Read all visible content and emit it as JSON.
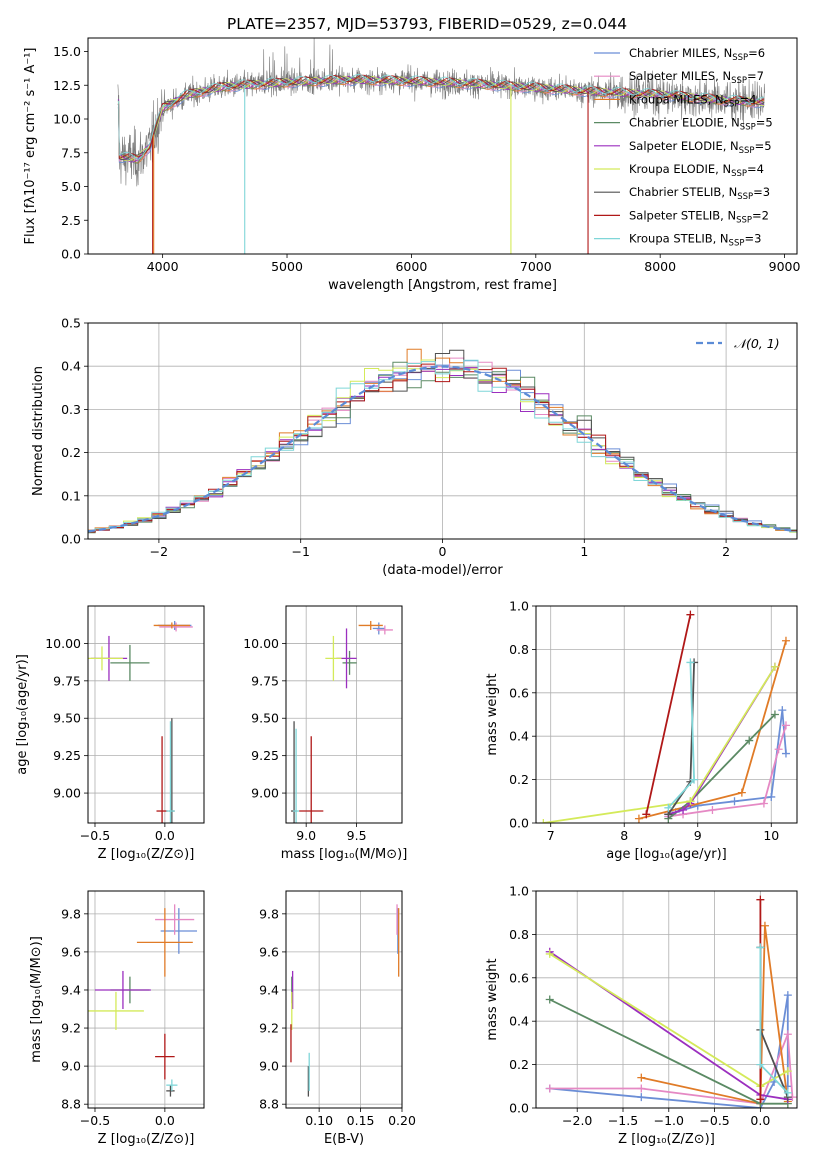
{
  "title": "PLATE=2357, MJD=53793, FIBERID=0529, z=0.044",
  "colors": {
    "Chabrier MILES": "#6b8ed6",
    "Salpeter MILES": "#e589c4",
    "Kroupa MILES": "#e07b27",
    "Chabrier ELODIE": "#5b8a64",
    "Salpeter ELODIE": "#9b2fbf",
    "Kroupa ELODIE": "#d4ea5a",
    "Chabrier STELIB": "#505050",
    "Salpeter STELIB": "#b01818",
    "Kroupa STELIB": "#7fd6d8",
    "observed": "#7a7a7a",
    "gaussian": "#5b8bd6"
  },
  "chart_data": [
    {
      "id": "spectrum",
      "type": "line",
      "title": "PLATE=2357, MJD=53793, FIBERID=0529, z=0.044",
      "xlabel": "wavelength [Angstrom, rest frame]",
      "ylabel": "Flux [fλ10⁻¹⁷ erg cm⁻² s⁻¹ A⁻¹]",
      "xlim": [
        3400,
        9100
      ],
      "ylim": [
        0,
        16
      ],
      "xticks": [
        4000,
        5000,
        6000,
        7000,
        8000,
        9000
      ],
      "yticks": [
        0.0,
        2.5,
        5.0,
        7.5,
        10.0,
        12.5,
        15.0
      ],
      "legend_position": "top-right",
      "legend": [
        {
          "label": "Chabrier MILES, N",
          "sub": "SSP",
          "val": "=6"
        },
        {
          "label": "Salpeter MILES, N",
          "sub": "SSP",
          "val": "=7"
        },
        {
          "label": "Kroupa MILES, N",
          "sub": "SSP",
          "val": "=4"
        },
        {
          "label": "Chabrier ELODIE, N",
          "sub": "SSP",
          "val": "=5"
        },
        {
          "label": "Salpeter ELODIE, N",
          "sub": "SSP",
          "val": "=5"
        },
        {
          "label": "Kroupa ELODIE, N",
          "sub": "SSP",
          "val": "=4"
        },
        {
          "label": "Chabrier STELIB, N",
          "sub": "SSP",
          "val": "=3"
        },
        {
          "label": "Salpeter STELIB, N",
          "sub": "SSP",
          "val": "=2"
        },
        {
          "label": "Kroupa STELIB, N",
          "sub": "SSP",
          "val": "=3"
        }
      ],
      "observed_range": [
        3640,
        8840
      ],
      "continuum": [
        [
          3650,
          7.2
        ],
        [
          3800,
          7.0
        ],
        [
          3900,
          8.0
        ],
        [
          3950,
          9.5
        ],
        [
          4000,
          10.8
        ],
        [
          4200,
          11.8
        ],
        [
          4500,
          12.4
        ],
        [
          5000,
          12.7
        ],
        [
          5500,
          12.9
        ],
        [
          6000,
          12.8
        ],
        [
          6500,
          12.6
        ],
        [
          7000,
          12.3
        ],
        [
          7500,
          12.0
        ],
        [
          8000,
          11.8
        ],
        [
          8500,
          11.4
        ],
        [
          8840,
          11.2
        ]
      ],
      "dips": [
        {
          "x": 3920,
          "model": "Salpeter STELIB",
          "to": 0
        },
        {
          "x": 3928,
          "model": "Kroupa MILES",
          "to": 0
        },
        {
          "x": 4660,
          "model": "Kroupa STELIB",
          "to": 0
        },
        {
          "x": 6800,
          "model": "Kroupa ELODIE",
          "to": 0
        },
        {
          "x": 7420,
          "model": "Salpeter STELIB",
          "to": 0
        }
      ]
    },
    {
      "id": "residuals",
      "type": "step",
      "xlabel": "(data-model)/error",
      "ylabel": "Normed distribution",
      "xlim": [
        -2.5,
        2.5
      ],
      "ylim": [
        0,
        0.5
      ],
      "xticks": [
        -2,
        -1,
        0,
        1,
        2
      ],
      "yticks": [
        0.0,
        0.1,
        0.2,
        0.3,
        0.4,
        0.5
      ],
      "bin_width": 0.1,
      "legend_position": "top-right",
      "legend": [
        {
          "label": "𝒩(0, 1)",
          "style": "dashed"
        }
      ]
    },
    {
      "id": "age_vs_Z",
      "type": "errorbar",
      "xlabel": "Z [log₁₀(Z/Z⊙)]",
      "ylabel": "age  [log₁₀(age/yr)]",
      "xlim": [
        -0.55,
        0.28
      ],
      "ylim": [
        8.8,
        10.25
      ],
      "xticks": [
        -0.5,
        0.0
      ],
      "yticks": [
        9.0,
        9.25,
        9.5,
        9.75,
        10.0
      ],
      "points": [
        {
          "model": "Chabrier MILES",
          "x": 0.07,
          "xerr": 0.12,
          "y": 10.12,
          "yerr": 0.03
        },
        {
          "model": "Salpeter MILES",
          "x": 0.08,
          "xerr": 0.12,
          "y": 10.11,
          "yerr": 0.03
        },
        {
          "model": "Kroupa MILES",
          "x": 0.05,
          "xerr": 0.13,
          "y": 10.12,
          "yerr": 0.02
        },
        {
          "model": "Chabrier ELODIE",
          "x": -0.25,
          "xerr": 0.14,
          "y": 9.87,
          "yerr": 0.12
        },
        {
          "model": "Salpeter ELODIE",
          "x": -0.4,
          "xerr": 0.13,
          "y": 9.9,
          "yerr": 0.15
        },
        {
          "model": "Kroupa ELODIE",
          "x": -0.45,
          "xerr": 0.15,
          "y": 9.9,
          "yerr": 0.08
        },
        {
          "model": "Chabrier STELIB",
          "x": 0.05,
          "xerr": 0.02,
          "y": 8.88,
          "yerr": 0.62
        },
        {
          "model": "Salpeter STELIB",
          "x": -0.02,
          "xerr": 0.04,
          "y": 8.88,
          "yerr": 0.5
        },
        {
          "model": "Kroupa STELIB",
          "x": 0.04,
          "xerr": 0.03,
          "y": 8.88,
          "yerr": 0.6
        }
      ]
    },
    {
      "id": "age_vs_mass",
      "type": "errorbar",
      "xlabel": "mass [log₁₀(M/M⊙)]",
      "ylabel": "",
      "xlim": [
        8.8,
        9.95
      ],
      "ylim": [
        8.8,
        10.25
      ],
      "xticks": [
        9.0,
        9.5
      ],
      "yticks": [
        9.0,
        9.25,
        9.5,
        9.75,
        10.0
      ],
      "points": [
        {
          "model": "Chabrier MILES",
          "x": 9.72,
          "xerr": 0.06,
          "y": 10.1,
          "yerr": 0.04
        },
        {
          "model": "Salpeter MILES",
          "x": 9.78,
          "xerr": 0.08,
          "y": 10.09,
          "yerr": 0.03
        },
        {
          "model": "Kroupa MILES",
          "x": 9.64,
          "xerr": 0.12,
          "y": 10.12,
          "yerr": 0.03
        },
        {
          "model": "Chabrier ELODIE",
          "x": 9.43,
          "xerr": 0.07,
          "y": 9.87,
          "yerr": 0.08
        },
        {
          "model": "Salpeter ELODIE",
          "x": 9.4,
          "xerr": 0.1,
          "y": 9.9,
          "yerr": 0.2
        },
        {
          "model": "Kroupa ELODIE",
          "x": 9.27,
          "xerr": 0.08,
          "y": 9.9,
          "yerr": 0.15
        },
        {
          "model": "Chabrier STELIB",
          "x": 8.88,
          "xerr": 0.03,
          "y": 8.88,
          "yerr": 0.6
        },
        {
          "model": "Salpeter STELIB",
          "x": 9.05,
          "xerr": 0.12,
          "y": 8.88,
          "yerr": 0.5
        },
        {
          "model": "Kroupa STELIB",
          "x": 8.9,
          "xerr": 0.03,
          "y": 8.88,
          "yerr": 0.55
        }
      ]
    },
    {
      "id": "weight_vs_age",
      "type": "line",
      "xlabel": "age  [log₁₀(age/yr)]",
      "ylabel": "mass weight",
      "xlim": [
        6.8,
        10.35
      ],
      "ylim": [
        0,
        1.0
      ],
      "xticks": [
        7,
        8,
        9,
        10
      ],
      "yticks": [
        0.0,
        0.2,
        0.4,
        0.6,
        0.8,
        1.0
      ],
      "series": [
        {
          "model": "Chabrier MILES",
          "x": [
            8.6,
            8.7,
            9.0,
            9.5,
            10.0,
            10.15,
            10.2
          ],
          "y": [
            0.03,
            0.05,
            0.08,
            0.1,
            0.12,
            0.52,
            0.32
          ]
        },
        {
          "model": "Salpeter MILES",
          "x": [
            8.6,
            8.8,
            9.2,
            9.9,
            10.1,
            10.2
          ],
          "y": [
            0.03,
            0.04,
            0.06,
            0.09,
            0.34,
            0.45
          ]
        },
        {
          "model": "Kroupa MILES",
          "x": [
            8.2,
            9.6,
            10.2
          ],
          "y": [
            0.02,
            0.14,
            0.84
          ]
        },
        {
          "model": "Chabrier ELODIE",
          "x": [
            8.6,
            8.9,
            9.7,
            10.05
          ],
          "y": [
            0.02,
            0.1,
            0.38,
            0.5
          ]
        },
        {
          "model": "Salpeter ELODIE",
          "x": [
            8.6,
            8.8,
            8.9,
            10.05
          ],
          "y": [
            0.04,
            0.06,
            0.09,
            0.72
          ]
        },
        {
          "model": "Kroupa ELODIE",
          "x": [
            6.9,
            8.9,
            10.05
          ],
          "y": [
            0.0,
            0.1,
            0.72
          ]
        },
        {
          "model": "Chabrier STELIB",
          "x": [
            8.6,
            8.9,
            8.95
          ],
          "y": [
            0.04,
            0.19,
            0.74
          ]
        },
        {
          "model": "Salpeter STELIB",
          "x": [
            8.3,
            8.9
          ],
          "y": [
            0.04,
            0.96
          ]
        },
        {
          "model": "Kroupa STELIB",
          "x": [
            8.6,
            8.95,
            8.9
          ],
          "y": [
            0.07,
            0.2,
            0.74
          ]
        }
      ]
    },
    {
      "id": "mass_vs_Z",
      "type": "errorbar",
      "xlabel": "Z [log₁₀(Z/Z⊙)]",
      "ylabel": "mass [log₁₀(M/M⊙)]",
      "xlim": [
        -0.55,
        0.28
      ],
      "ylim": [
        8.78,
        9.92
      ],
      "xticks": [
        -0.5,
        0.0
      ],
      "yticks": [
        8.8,
        9.0,
        9.2,
        9.4,
        9.6,
        9.8
      ],
      "points": [
        {
          "model": "Chabrier MILES",
          "x": 0.1,
          "xerr": 0.13,
          "y": 9.71,
          "yerr": 0.12
        },
        {
          "model": "Salpeter MILES",
          "x": 0.07,
          "xerr": 0.14,
          "y": 9.77,
          "yerr": 0.08
        },
        {
          "model": "Kroupa MILES",
          "x": 0.0,
          "xerr": 0.2,
          "y": 9.65,
          "yerr": 0.18
        },
        {
          "model": "Chabrier ELODIE",
          "x": -0.25,
          "xerr": 0.14,
          "y": 9.4,
          "yerr": 0.07
        },
        {
          "model": "Salpeter ELODIE",
          "x": -0.3,
          "xerr": 0.2,
          "y": 9.4,
          "yerr": 0.1
        },
        {
          "model": "Kroupa ELODIE",
          "x": -0.35,
          "xerr": 0.2,
          "y": 9.29,
          "yerr": 0.1
        },
        {
          "model": "Chabrier STELIB",
          "x": 0.04,
          "xerr": 0.03,
          "y": 8.87,
          "yerr": 0.03
        },
        {
          "model": "Salpeter STELIB",
          "x": 0.0,
          "xerr": 0.07,
          "y": 9.05,
          "yerr": 0.12
        },
        {
          "model": "Kroupa STELIB",
          "x": 0.05,
          "xerr": 0.04,
          "y": 8.9,
          "yerr": 0.03
        }
      ]
    },
    {
      "id": "mass_vs_EBV",
      "type": "errorbar",
      "xlabel": "E(B-V)",
      "ylabel": "",
      "xlim": [
        0.06,
        0.2
      ],
      "ylim": [
        8.78,
        9.92
      ],
      "xticks": [
        0.1,
        0.15,
        0.2
      ],
      "yticks": [
        8.8,
        9.0,
        9.2,
        9.4,
        9.6,
        9.8
      ],
      "points": [
        {
          "model": "Chabrier MILES",
          "x": 0.195,
          "y": 9.71,
          "yerr": 0.12
        },
        {
          "model": "Salpeter MILES",
          "x": 0.194,
          "y": 9.77,
          "yerr": 0.08
        },
        {
          "model": "Kroupa MILES",
          "x": 0.196,
          "y": 9.65,
          "yerr": 0.18
        },
        {
          "model": "Chabrier ELODIE",
          "x": 0.067,
          "y": 9.4,
          "yerr": 0.07
        },
        {
          "model": "Salpeter ELODIE",
          "x": 0.068,
          "y": 9.4,
          "yerr": 0.1
        },
        {
          "model": "Kroupa ELODIE",
          "x": 0.067,
          "y": 9.29,
          "yerr": 0.1
        },
        {
          "model": "Chabrier STELIB",
          "x": 0.087,
          "y": 8.92,
          "yerr": 0.08
        },
        {
          "model": "Salpeter STELIB",
          "x": 0.066,
          "y": 9.12,
          "yerr": 0.1
        },
        {
          "model": "Kroupa STELIB",
          "x": 0.088,
          "y": 8.97,
          "yerr": 0.1
        }
      ]
    },
    {
      "id": "weight_vs_Z",
      "type": "line",
      "xlabel": "Z [log₁₀(Z/Z⊙)]",
      "ylabel": "mass weight",
      "xlim": [
        -2.45,
        0.4
      ],
      "ylim": [
        0,
        1.0
      ],
      "xticks": [
        -2.0,
        -1.5,
        -1.0,
        -0.5,
        0.0
      ],
      "yticks": [
        0.0,
        0.2,
        0.4,
        0.6,
        0.8,
        1.0
      ],
      "series": [
        {
          "model": "Chabrier MILES",
          "x": [
            -2.3,
            -1.3,
            0.0,
            0.15,
            0.3,
            0.3
          ],
          "y": [
            0.09,
            0.05,
            0.0,
            0.12,
            0.52,
            0.1
          ]
        },
        {
          "model": "Salpeter MILES",
          "x": [
            -2.3,
            -1.3,
            0.0,
            0.3,
            0.35
          ],
          "y": [
            0.09,
            0.09,
            0.02,
            0.34,
            0.05
          ]
        },
        {
          "model": "Kroupa MILES",
          "x": [
            -1.3,
            0.0,
            0.05,
            0.3
          ],
          "y": [
            0.14,
            0.02,
            0.84,
            0.03
          ]
        },
        {
          "model": "Chabrier ELODIE",
          "x": [
            -2.3,
            0.0,
            0.3
          ],
          "y": [
            0.5,
            0.02,
            0.02
          ]
        },
        {
          "model": "Salpeter ELODIE",
          "x": [
            -2.3,
            0.0,
            0.3
          ],
          "y": [
            0.72,
            0.06,
            0.04
          ]
        },
        {
          "model": "Kroupa ELODIE",
          "x": [
            -2.3,
            0.0,
            0.3
          ],
          "y": [
            0.71,
            0.1,
            0.17
          ]
        },
        {
          "model": "Chabrier STELIB",
          "x": [
            0.0,
            0.0,
            0.3
          ],
          "y": [
            0.74,
            0.36,
            0.05
          ]
        },
        {
          "model": "Salpeter STELIB",
          "x": [
            0.0,
            0.0
          ],
          "y": [
            0.96,
            0.04
          ]
        },
        {
          "model": "Kroupa STELIB",
          "x": [
            0.0,
            0.0,
            0.3
          ],
          "y": [
            0.74,
            0.2,
            0.07
          ]
        }
      ]
    }
  ]
}
